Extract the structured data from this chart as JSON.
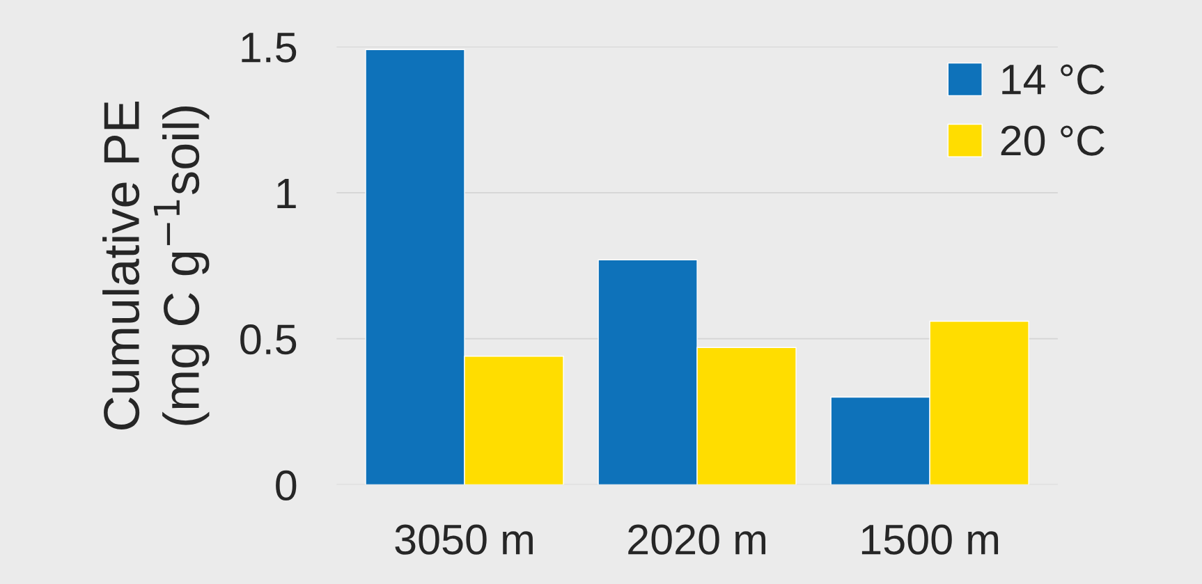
{
  "chart_data": {
    "type": "bar",
    "ylabel": "Cumulative PE\n(mg C g$^{−1}$soil)",
    "categories": [
      "3050 m",
      "2020 m",
      "1500 m"
    ],
    "series": [
      {
        "name": "14 °C",
        "color": "#0e72ba",
        "values": [
          1.49,
          0.77,
          0.3
        ]
      },
      {
        "name": "20 °C",
        "color": "#ffdd00",
        "values": [
          0.44,
          0.47,
          0.56
        ]
      }
    ],
    "ylim": [
      0,
      1.5
    ],
    "yticks": [
      0,
      0.5,
      1,
      1.5
    ],
    "grid": "y",
    "legend": "top right"
  }
}
